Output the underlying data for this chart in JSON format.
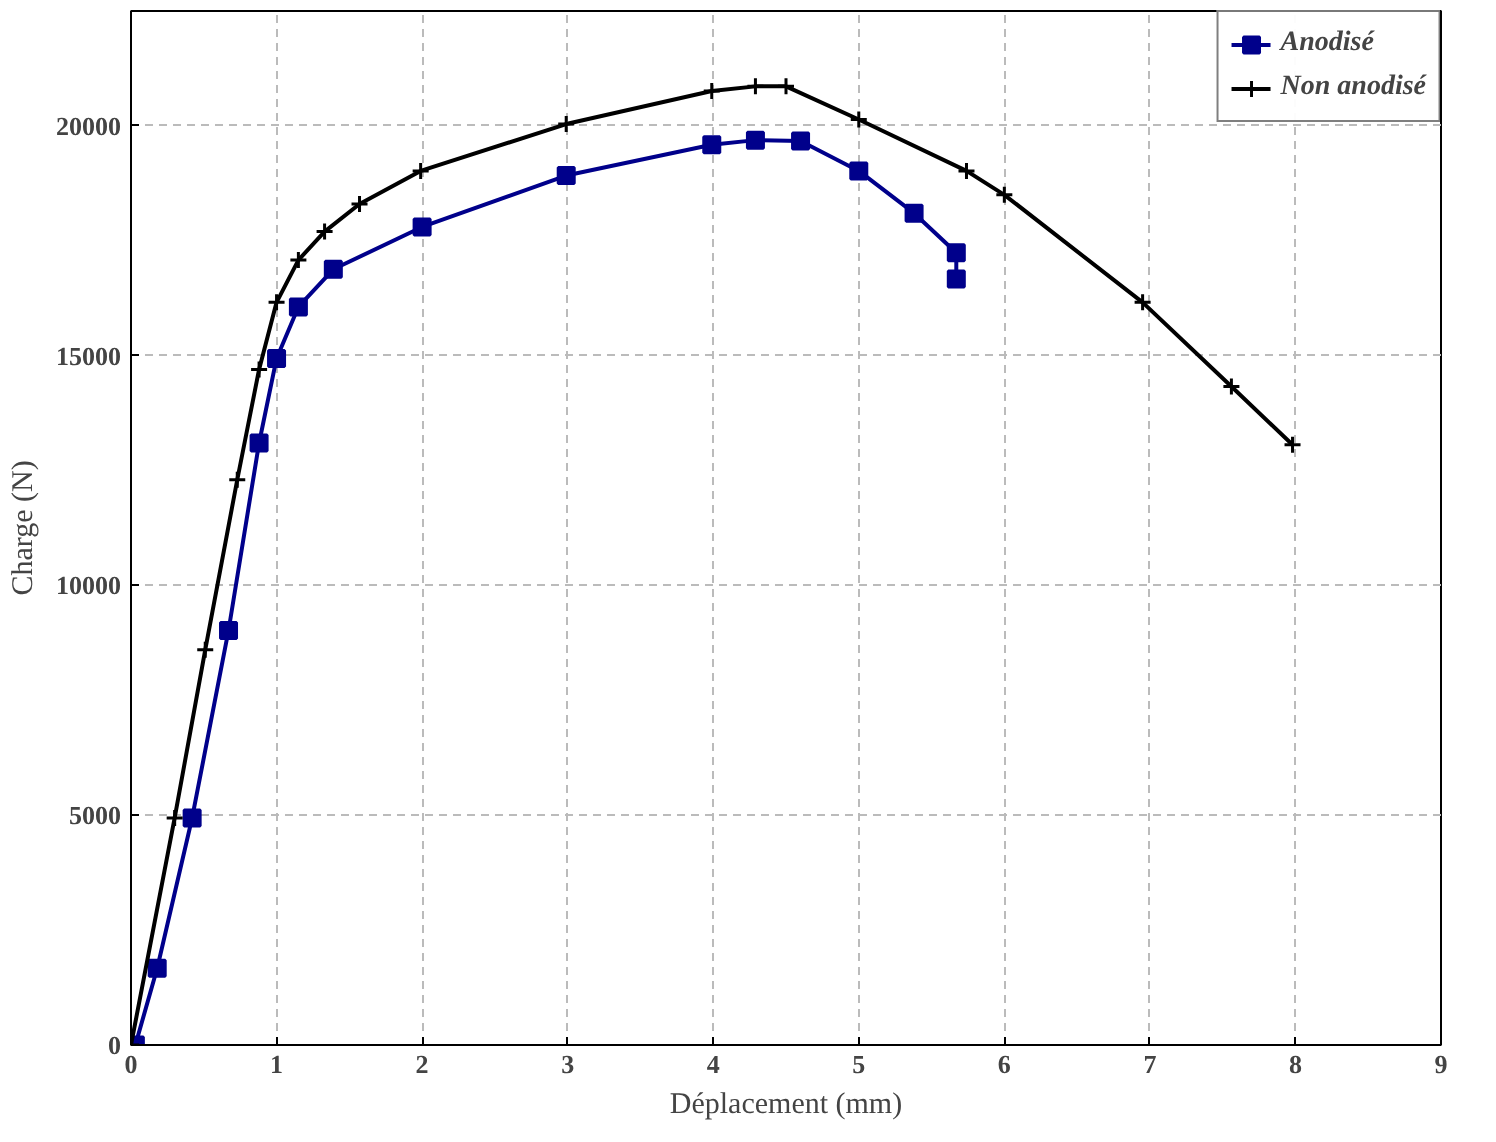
{
  "chart_data": {
    "type": "line",
    "xlabel": "Déplacement (mm)",
    "ylabel": "Charge (N)",
    "xlim": [
      0,
      9
    ],
    "xticks": [
      0,
      1,
      2,
      3,
      4,
      5,
      6,
      7,
      8,
      9
    ],
    "ylim": [
      0,
      22500
    ],
    "yticks": [
      0,
      5000,
      10000,
      15000,
      20000
    ],
    "grid": true,
    "legend": "top right",
    "line_style": "solid",
    "series": [
      {
        "name": "Anodisé",
        "color": "#00008b",
        "marker": "square",
        "x": [
          0.03,
          0.18,
          0.42,
          0.67,
          0.88,
          1.0,
          1.15,
          1.39,
          2.0,
          2.99,
          3.99,
          4.29,
          4.6,
          5.0,
          5.38,
          5.67,
          5.67
        ],
        "values": [
          0,
          1670,
          4940,
          9020,
          13100,
          14940,
          16060,
          16880,
          17800,
          18920,
          19590,
          19690,
          19670,
          19020,
          18100,
          17240,
          16670
        ]
      },
      {
        "name": "Non anodisé",
        "color": "#000000",
        "marker": "cross",
        "x": [
          0,
          0.3,
          0.51,
          0.73,
          0.88,
          1.0,
          1.15,
          1.33,
          1.57,
          1.99,
          2.99,
          3.99,
          4.29,
          4.5,
          5.0,
          5.74,
          6.0,
          6.95,
          7.56,
          7.98
        ],
        "values": [
          0,
          4940,
          8600,
          12300,
          14700,
          16160,
          17080,
          17700,
          18300,
          19020,
          20040,
          20760,
          20860,
          20860,
          20140,
          19020,
          18500,
          16160,
          14330,
          13060
        ]
      }
    ]
  }
}
